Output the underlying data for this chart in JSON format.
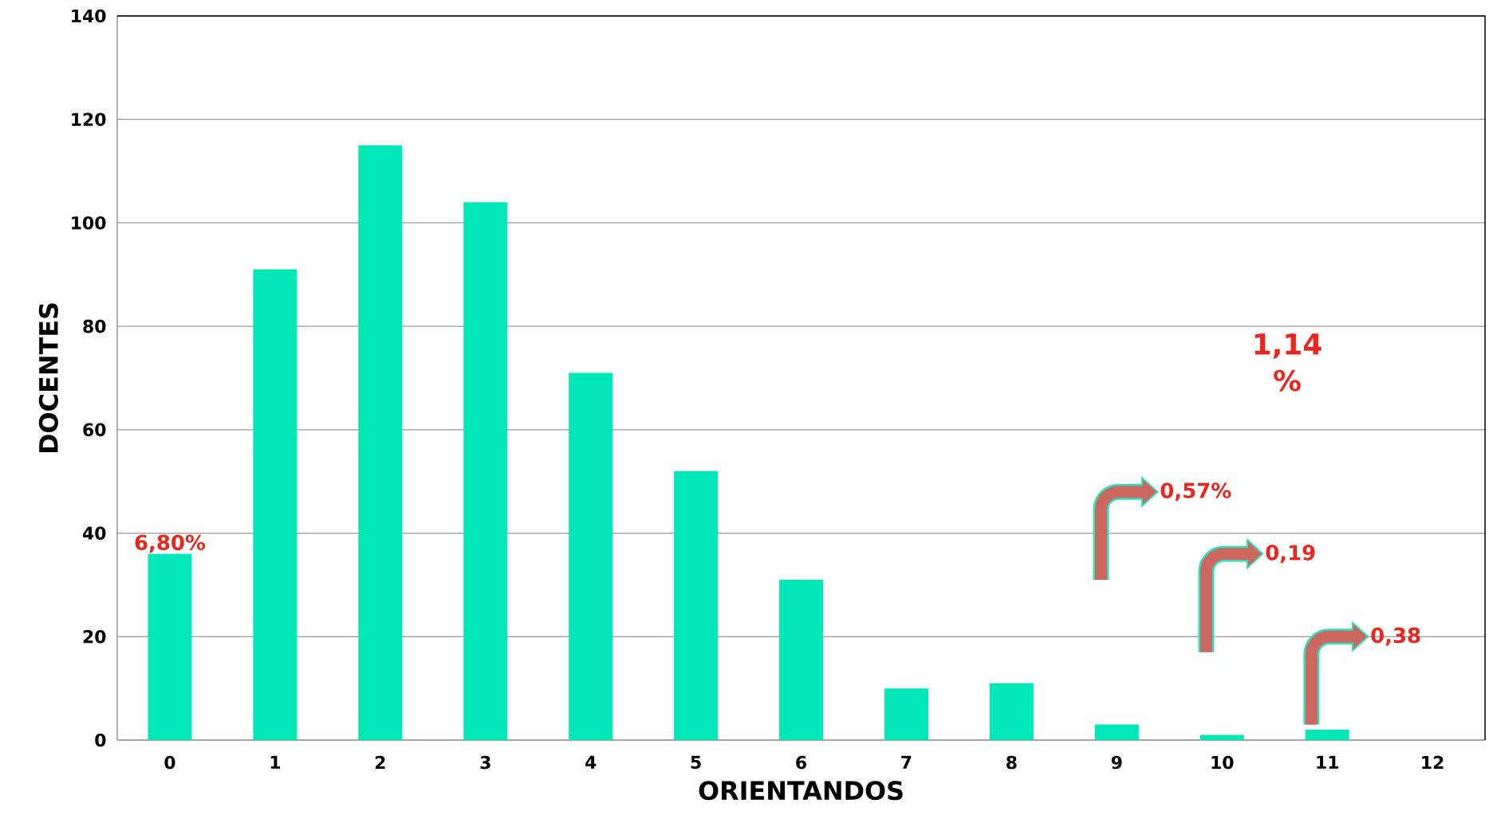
{
  "chart_data": {
    "type": "bar",
    "xlabel": "ORIENTANDOS",
    "ylabel": "DOCENTES",
    "categories": [
      "0",
      "1",
      "2",
      "3",
      "4",
      "5",
      "6",
      "7",
      "8",
      "9",
      "10",
      "11",
      "12"
    ],
    "values": [
      36,
      91,
      115,
      104,
      71,
      52,
      31,
      10,
      11,
      3,
      1,
      2,
      null
    ],
    "color": "#00e8b8",
    "ylim": [
      0,
      140
    ],
    "yticks": [
      0,
      20,
      40,
      60,
      80,
      100,
      120,
      140
    ],
    "grid": "y",
    "annotations": [
      {
        "text": "6,80%",
        "x": "0",
        "y": 36
      },
      "1,14 %",
      "0,57%",
      "0,19",
      "0,38"
    ]
  }
}
